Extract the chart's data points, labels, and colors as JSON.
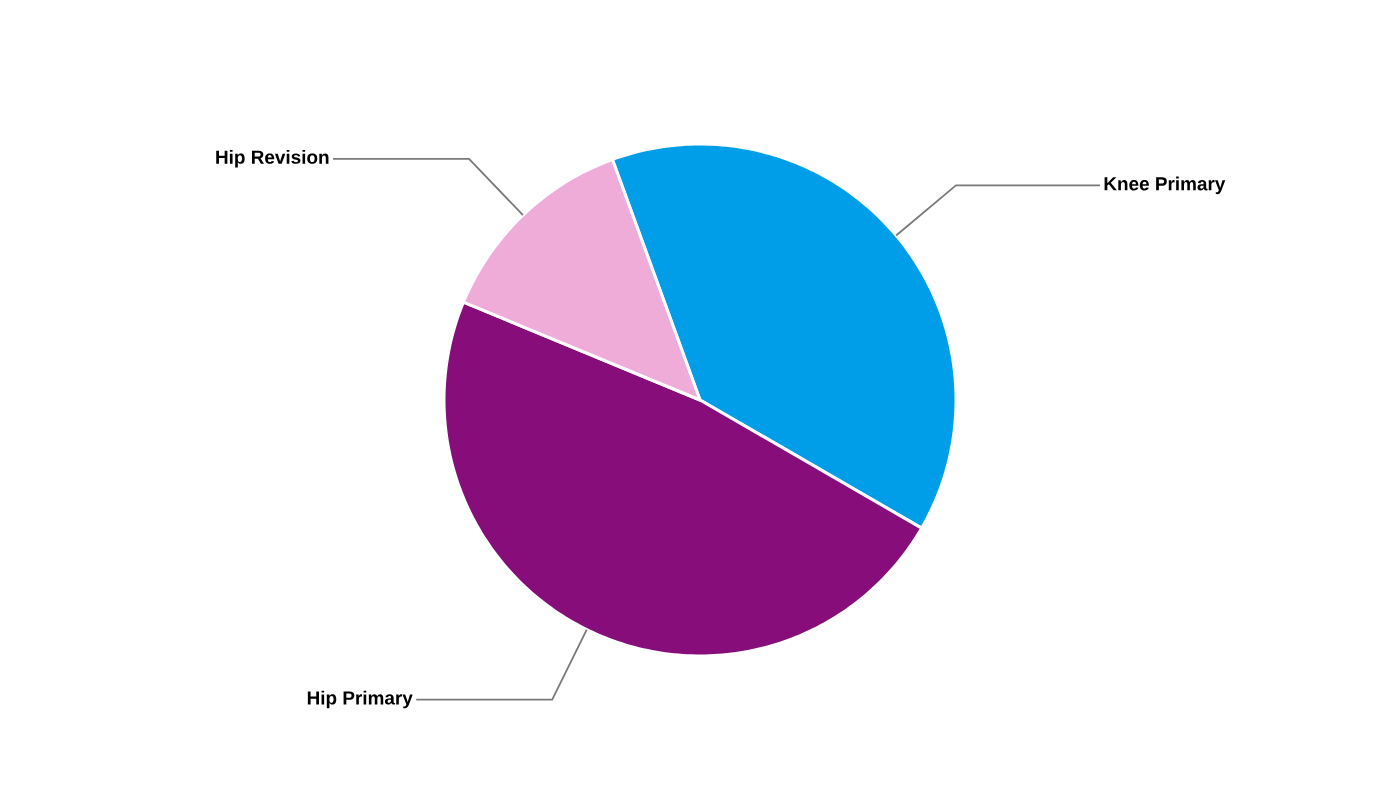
{
  "chart_data": {
    "type": "pie",
    "categories": [
      "Knee Primary",
      "Hip Primary",
      "Hip Revision"
    ],
    "values": [
      38.9,
      47.9,
      13.2
    ],
    "colors": [
      "#009ee8",
      "#870e7a",
      "#f0acd9"
    ]
  }
}
